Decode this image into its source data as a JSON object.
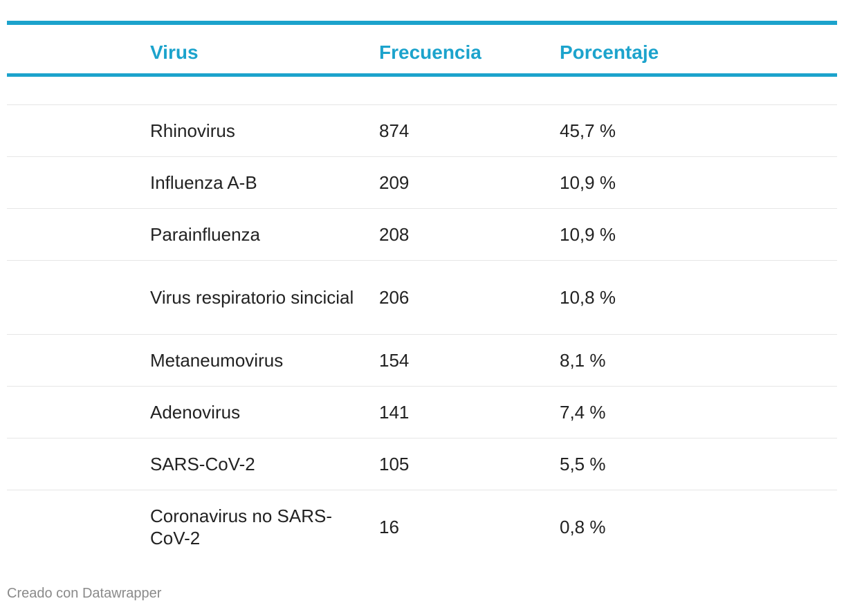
{
  "colors": {
    "accent": "#1ca3cc",
    "text": "#222222",
    "rule": "#e6e6e6",
    "footer": "#8a8a8a"
  },
  "chart_data": {
    "type": "table",
    "columns": [
      "Virus",
      "Frecuencia",
      "Porcentaje"
    ],
    "rows": [
      {
        "virus": "Rhinovirus",
        "frecuencia": "874",
        "porcentaje": "45,7 %"
      },
      {
        "virus": "Influenza A-B",
        "frecuencia": "209",
        "porcentaje": "10,9 %"
      },
      {
        "virus": "Parainfluenza",
        "frecuencia": "208",
        "porcentaje": "10,9 %"
      },
      {
        "virus": "Virus respiratorio sincicial",
        "frecuencia": "206",
        "porcentaje": "10,8 %"
      },
      {
        "virus": "Metaneumovirus",
        "frecuencia": "154",
        "porcentaje": "8,1 %"
      },
      {
        "virus": "Adenovirus",
        "frecuencia": "141",
        "porcentaje": "7,4 %"
      },
      {
        "virus": "SARS-CoV-2",
        "frecuencia": "105",
        "porcentaje": "5,5 %"
      },
      {
        "virus": "Coronavirus no SARS-CoV-2",
        "frecuencia": "16",
        "porcentaje": "0,8 %"
      }
    ]
  },
  "footer": {
    "credit": "Creado con Datawrapper"
  }
}
